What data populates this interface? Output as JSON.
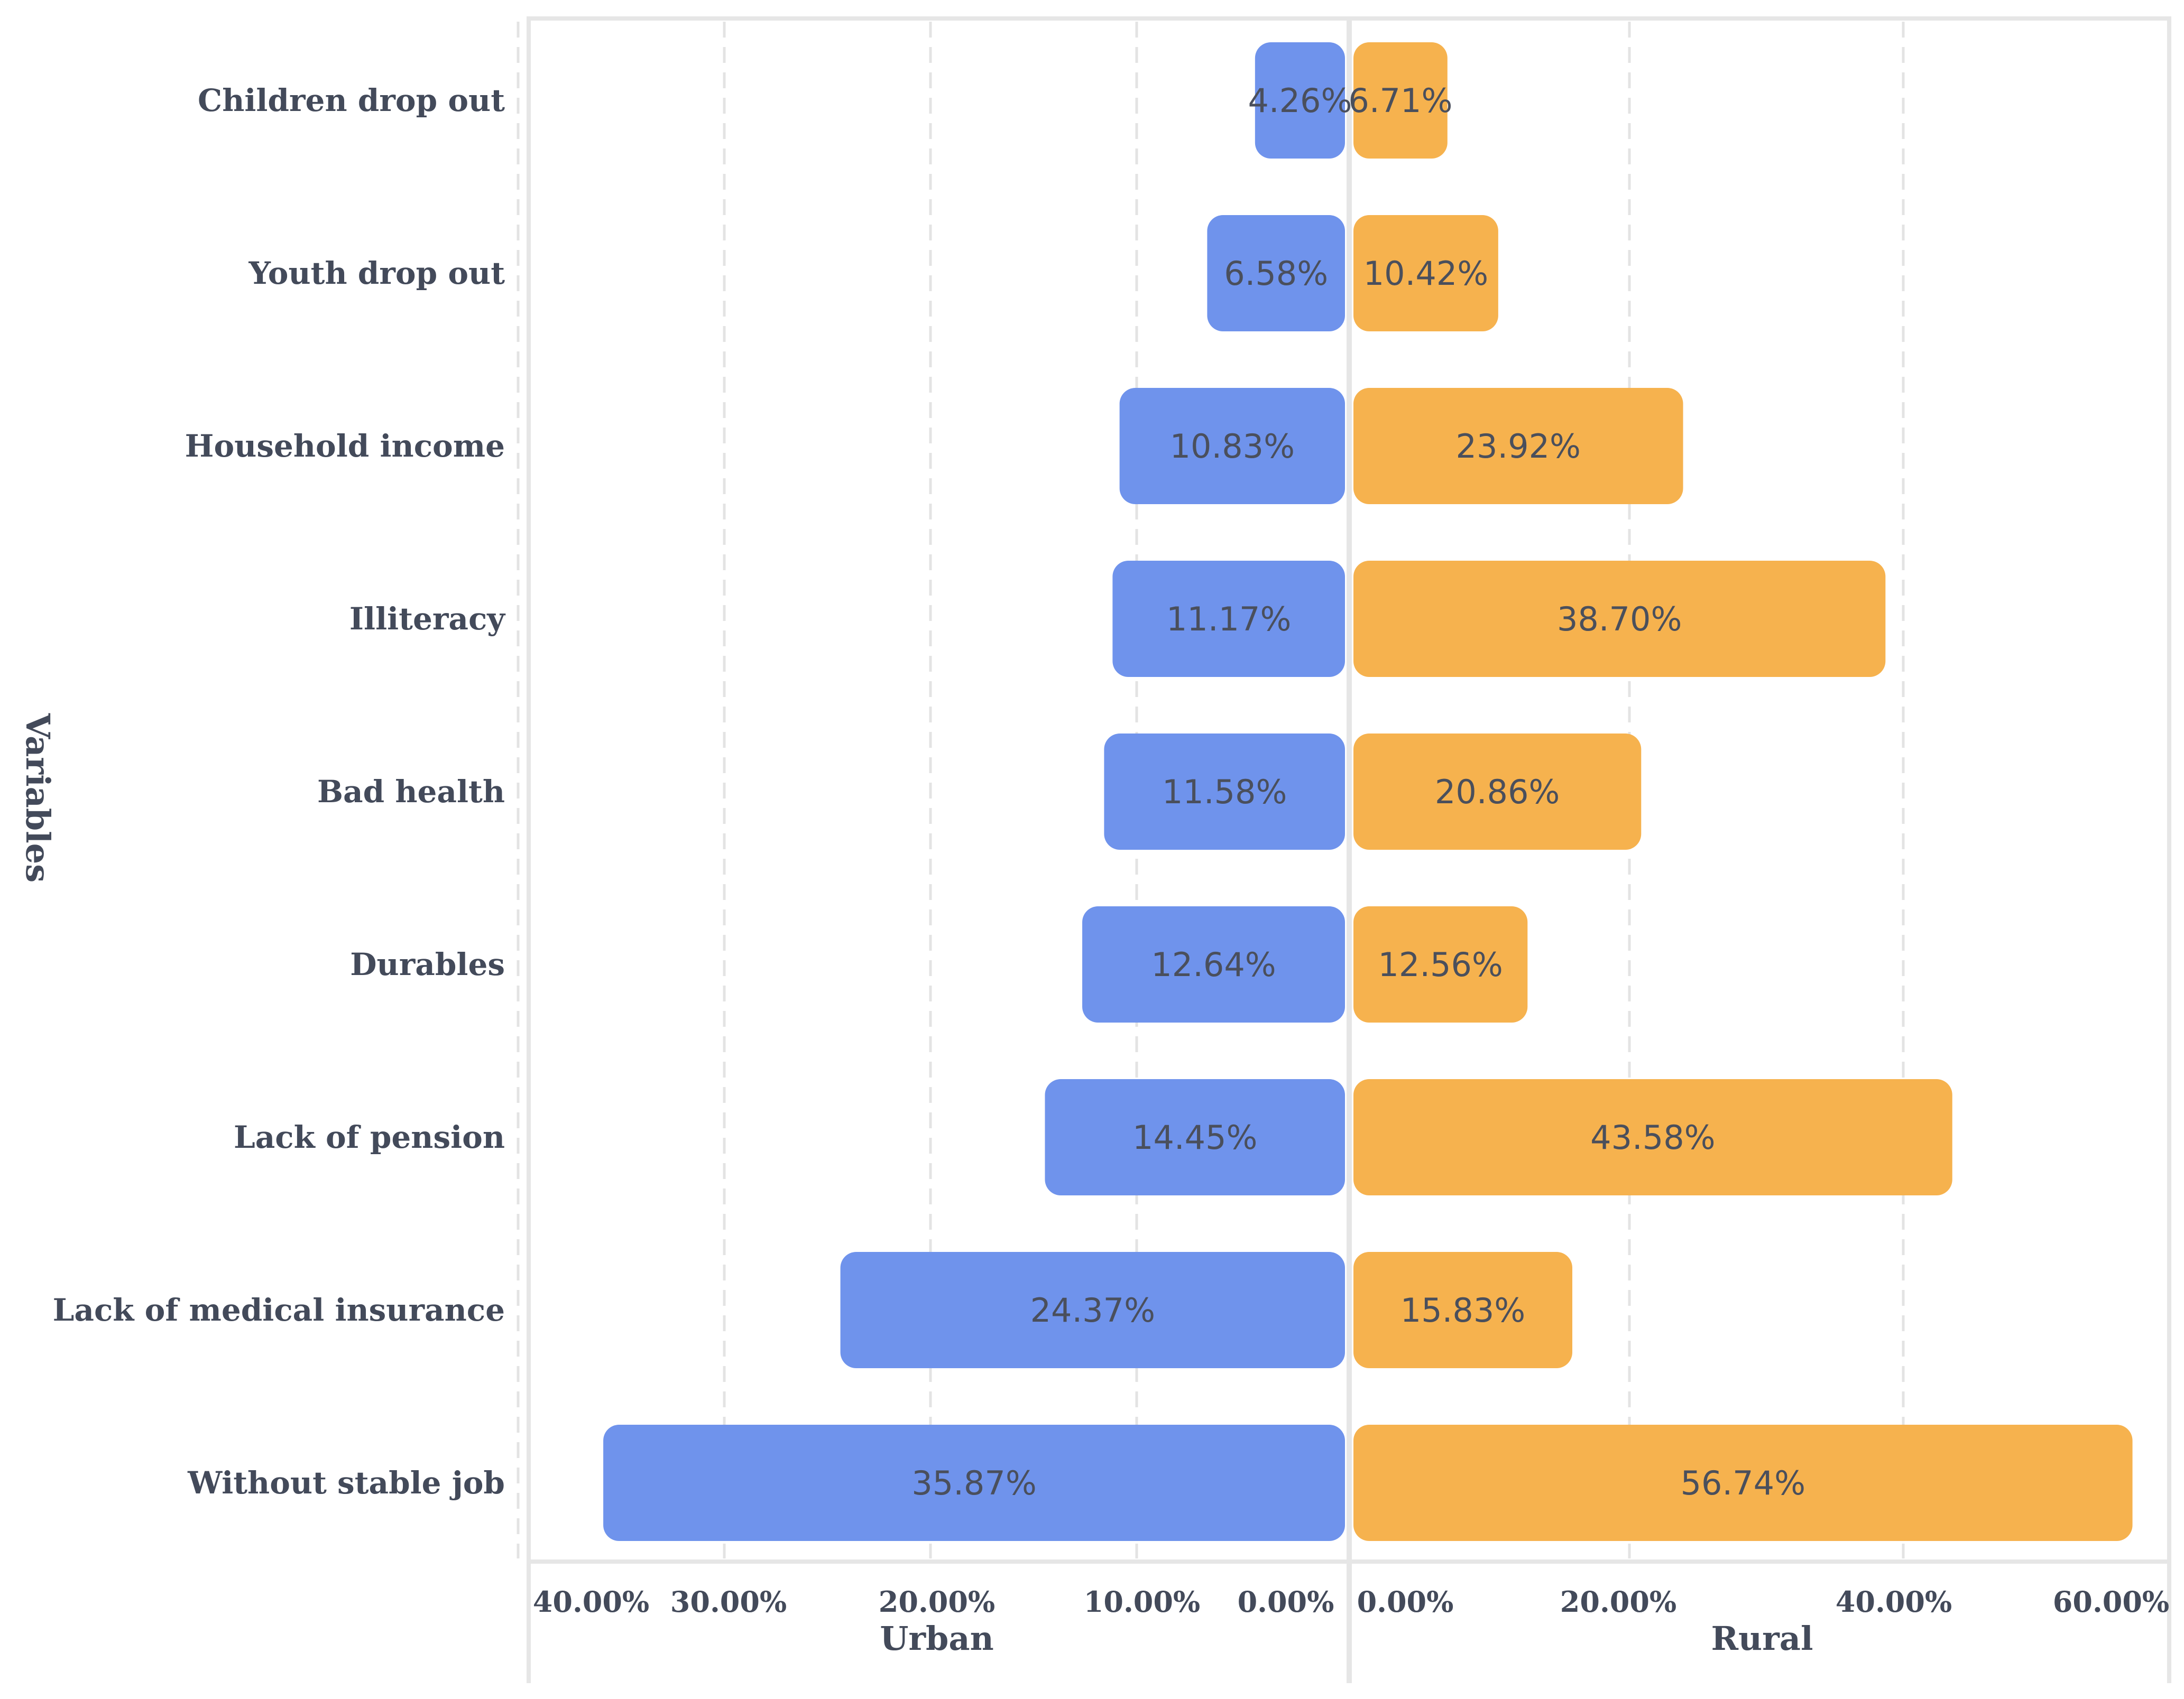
{
  "chart_data": {
    "type": "bar",
    "orientation": "horizontal-diverging",
    "yaxis_title": "Variables",
    "categories": [
      "Children drop out",
      "Youth drop out",
      "Household income",
      "Illiteracy",
      "Bad health",
      "Durables",
      "Lack of pension",
      "Lack of medical insurance",
      "Without stable job"
    ],
    "series": [
      {
        "name": "Urban",
        "color": "#6f93ec",
        "values": [
          4.26,
          6.58,
          10.83,
          11.17,
          11.58,
          12.64,
          14.45,
          24.37,
          35.87
        ],
        "labels": [
          "4.26%",
          "6.58%",
          "10.83%",
          "11.17%",
          "11.58%",
          "12.64%",
          "14.45%",
          "24.37%",
          "35.87%"
        ],
        "axis_title": "Urban",
        "xlim": [
          40,
          0
        ],
        "ticks": [
          40,
          30,
          20,
          10,
          0
        ],
        "tick_labels": [
          "40.00%",
          "30.00%",
          "20.00%",
          "10.00%",
          "0.00%"
        ]
      },
      {
        "name": "Rural",
        "color": "#f6b24e",
        "values": [
          6.71,
          10.42,
          23.92,
          38.7,
          20.86,
          12.56,
          43.58,
          15.83,
          56.74
        ],
        "labels": [
          "6.71%",
          "10.42%",
          "23.92%",
          "38.70%",
          "20.86%",
          "12.56%",
          "43.58%",
          "15.83%",
          "56.74%"
        ],
        "axis_title": "Rural",
        "xlim": [
          0,
          60
        ],
        "ticks": [
          0,
          20,
          40,
          60
        ],
        "tick_labels": [
          "0.00%",
          "20.00%",
          "40.00%",
          "60.00%"
        ]
      }
    ],
    "grid": true,
    "frame_color": "#e6e6e6",
    "grid_color": "#e3e3e3",
    "text_color": "#434a5a"
  }
}
